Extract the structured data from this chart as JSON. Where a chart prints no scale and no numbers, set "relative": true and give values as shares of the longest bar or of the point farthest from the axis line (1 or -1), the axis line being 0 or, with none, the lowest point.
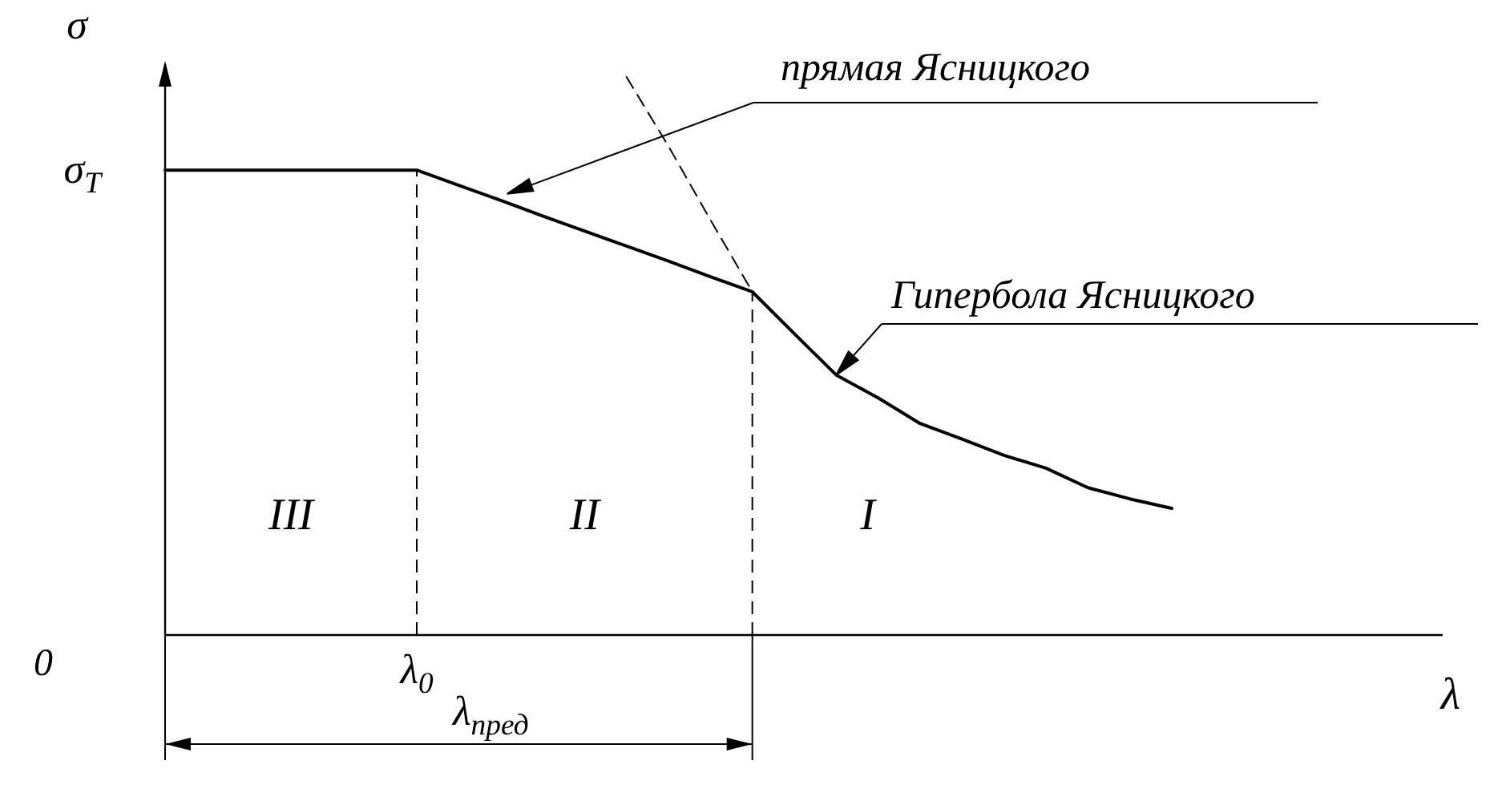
{
  "chart_data": {
    "type": "line",
    "relative": true,
    "ylabel": "σ",
    "categories": [
      null,
      null,
      null,
      null,
      null,
      null,
      null,
      null,
      null,
      null,
      null,
      null,
      null,
      null,
      null,
      null,
      null,
      null,
      null,
      null,
      null,
      null,
      null,
      null,
      null
    ],
    "series": [
      {
        "color": "#000000",
        "line_style": "solid",
        "values": [
          0.833,
          0.833,
          0.833,
          0.833,
          0.833,
          0.833,
          0.833,
          0.806,
          0.779,
          0.751,
          0.724,
          0.697,
          0.67,
          0.642,
          0.615,
          0.54,
          0.466,
          0.425,
          0.379,
          0.351,
          0.322,
          0.299,
          0.264,
          0.244,
          0.227
        ]
      },
      {
        "color": "#000000",
        "line_style": "dashed",
        "values": [
          null,
          null,
          null,
          null,
          null,
          null,
          null,
          null,
          null,
          null,
          null,
          1.0,
          0.876,
          0.744,
          0.615,
          null,
          null,
          null,
          null,
          null,
          null,
          null,
          null,
          null,
          null
        ]
      }
    ],
    "annotations": [
      "σ$_{T}$",
      "0",
      "прямая Ясницкого",
      "Гипербола Ясницкого",
      "III",
      "II",
      "I",
      "λ$_{пред}$",
      "λ$_{0}$",
      "λ"
    ],
    "marker": "none"
  }
}
